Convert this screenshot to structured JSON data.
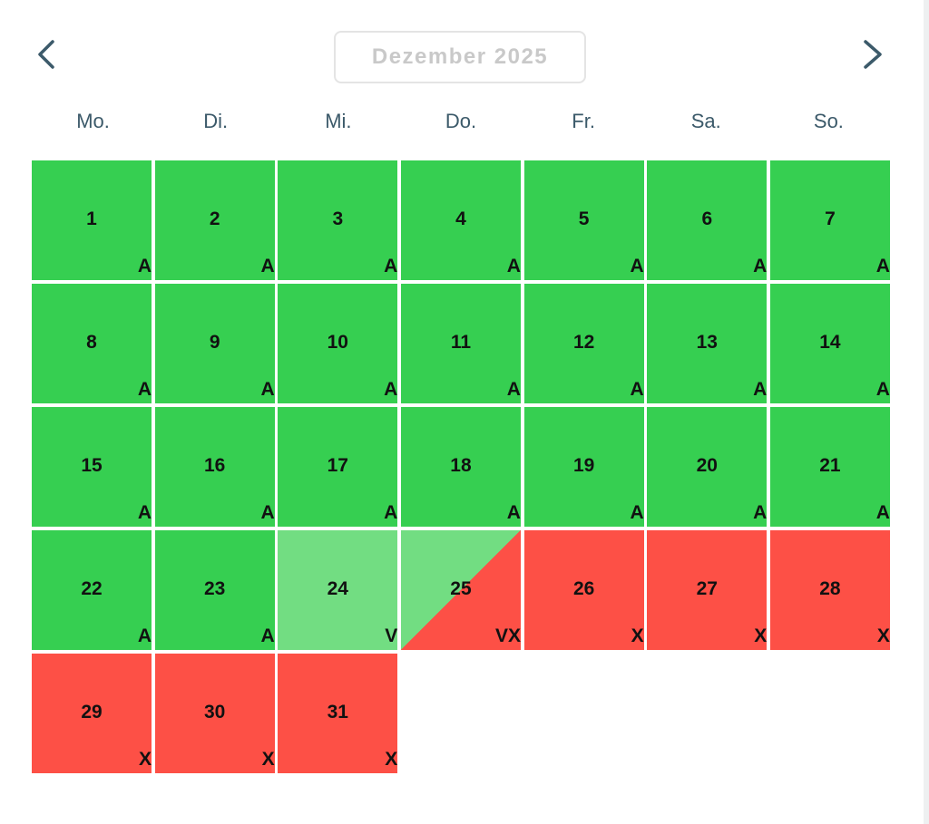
{
  "calendar": {
    "month_label": "Dezember 2025",
    "prev_icon": "chevron-left-icon",
    "next_icon": "chevron-right-icon",
    "weekdays": [
      "Mo.",
      "Di.",
      "Mi.",
      "Do.",
      "Fr.",
      "Sa.",
      "So."
    ],
    "colors": {
      "available": "#36cf51",
      "partial": "#72dd82",
      "booked": "#fd5046",
      "nav_icon": "#3c5a6a",
      "weekday_text": "#3c5a6a"
    },
    "days": [
      {
        "day": "1",
        "flag": "A",
        "status": "available"
      },
      {
        "day": "2",
        "flag": "A",
        "status": "available"
      },
      {
        "day": "3",
        "flag": "A",
        "status": "available"
      },
      {
        "day": "4",
        "flag": "A",
        "status": "available"
      },
      {
        "day": "5",
        "flag": "A",
        "status": "available"
      },
      {
        "day": "6",
        "flag": "A",
        "status": "available"
      },
      {
        "day": "7",
        "flag": "A",
        "status": "available"
      },
      {
        "day": "8",
        "flag": "A",
        "status": "available"
      },
      {
        "day": "9",
        "flag": "A",
        "status": "available"
      },
      {
        "day": "10",
        "flag": "A",
        "status": "available"
      },
      {
        "day": "11",
        "flag": "A",
        "status": "available"
      },
      {
        "day": "12",
        "flag": "A",
        "status": "available"
      },
      {
        "day": "13",
        "flag": "A",
        "status": "available"
      },
      {
        "day": "14",
        "flag": "A",
        "status": "available"
      },
      {
        "day": "15",
        "flag": "A",
        "status": "available"
      },
      {
        "day": "16",
        "flag": "A",
        "status": "available"
      },
      {
        "day": "17",
        "flag": "A",
        "status": "available"
      },
      {
        "day": "18",
        "flag": "A",
        "status": "available"
      },
      {
        "day": "19",
        "flag": "A",
        "status": "available"
      },
      {
        "day": "20",
        "flag": "A",
        "status": "available"
      },
      {
        "day": "21",
        "flag": "A",
        "status": "available"
      },
      {
        "day": "22",
        "flag": "A",
        "status": "available"
      },
      {
        "day": "23",
        "flag": "A",
        "status": "available"
      },
      {
        "day": "24",
        "flag": "V",
        "status": "partial"
      },
      {
        "day": "25",
        "flag": "VX",
        "status": "partial-booked"
      },
      {
        "day": "26",
        "flag": "X",
        "status": "booked"
      },
      {
        "day": "27",
        "flag": "X",
        "status": "booked"
      },
      {
        "day": "28",
        "flag": "X",
        "status": "booked"
      },
      {
        "day": "29",
        "flag": "X",
        "status": "booked"
      },
      {
        "day": "30",
        "flag": "X",
        "status": "booked"
      },
      {
        "day": "31",
        "flag": "X",
        "status": "booked"
      }
    ]
  }
}
